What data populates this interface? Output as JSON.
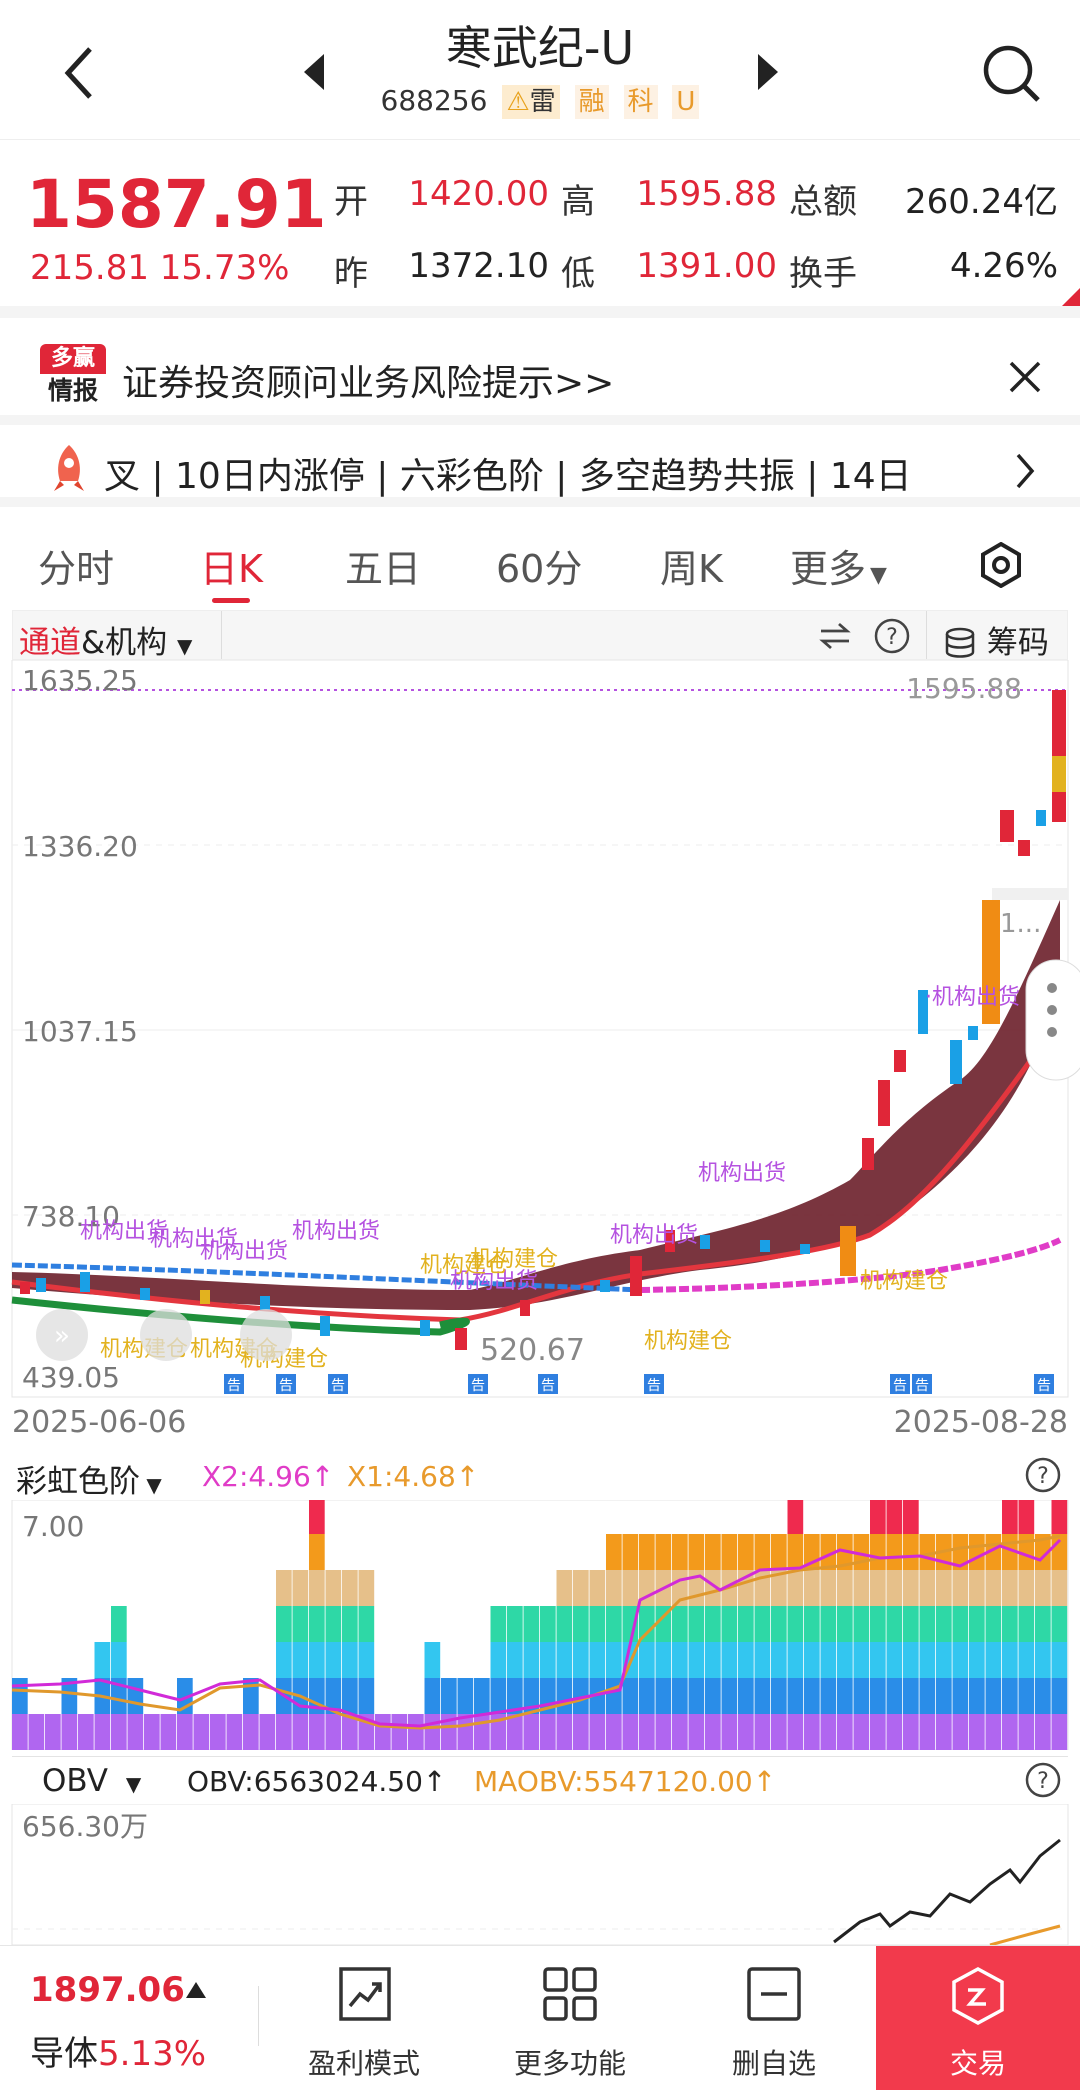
{
  "header": {
    "title": "寒武纪-U",
    "code": "688256",
    "tags": [
      "雷",
      "融",
      "科",
      "U"
    ]
  },
  "quote": {
    "price": "1587.91",
    "change": "215.81",
    "change_pct": "15.73%",
    "open_label": "开",
    "open": "1420.00",
    "high_label": "高",
    "high": "1595.88",
    "amount_label": "总额",
    "amount": "260.24亿",
    "prev_label": "昨",
    "prev": "1372.10",
    "low_label": "低",
    "low": "1391.00",
    "turnover_label": "换手",
    "turnover": "4.26%"
  },
  "banner": {
    "logo_top": "多赢",
    "logo_bottom": "情报",
    "text": "证券投资顾问业务风险提示>>"
  },
  "ticker": {
    "text": "叉 | 10日内涨停 | 六彩色阶 | 多空趋势共振 | 14日"
  },
  "tabs": [
    {
      "label": "分时",
      "active": false
    },
    {
      "label": "日K",
      "active": true
    },
    {
      "label": "五日",
      "active": false
    },
    {
      "label": "60分",
      "active": false
    },
    {
      "label": "周K",
      "active": false
    },
    {
      "label": "更多",
      "active": false
    }
  ],
  "indicator_bar": {
    "indicator_a": "通道",
    "indicator_b": "&机构",
    "chips_label": "筹码"
  },
  "kline": {
    "y_labels": [
      "1635.25",
      "1336.20",
      "1037.15",
      "738.10",
      "439.05"
    ],
    "high_marker": "1595.88",
    "low_marker": "520.67",
    "date_start": "2025-06-06",
    "date_end": "2025-08-28",
    "side_marker": "1...",
    "annotations_out": [
      "机构出货",
      "机构出货",
      "机构出货",
      "机构出货",
      "机构出货",
      "机构出货",
      "机构出货"
    ],
    "annotations_in": [
      "机构建仓",
      "机构建仓",
      "机构建仓",
      "机构建仓",
      "机构建仓",
      "机构建仓",
      "机构建仓"
    ],
    "notice_badge": "告"
  },
  "rainbow": {
    "name": "彩虹色阶",
    "x2": "X2:4.96↑",
    "x1": "X1:4.68↑",
    "y_top": "7.00"
  },
  "obv": {
    "name": "OBV",
    "obv": "OBV:6563024.50↑",
    "maobv": "MAOBV:5547120.00↑",
    "y_top": "656.30万"
  },
  "bottom": {
    "index_price": "1897.06",
    "index_name": "导体",
    "index_pct": "5.13%",
    "btn_profit": "盈利模式",
    "btn_more": "更多功能",
    "btn_remove": "删自选",
    "btn_trade": "交易"
  },
  "colors": {
    "up": "#e02638",
    "down": "#1aa0e6",
    "accent": "#f23a4c",
    "purple": "#b552e0",
    "gold": "#e2b21f"
  }
}
